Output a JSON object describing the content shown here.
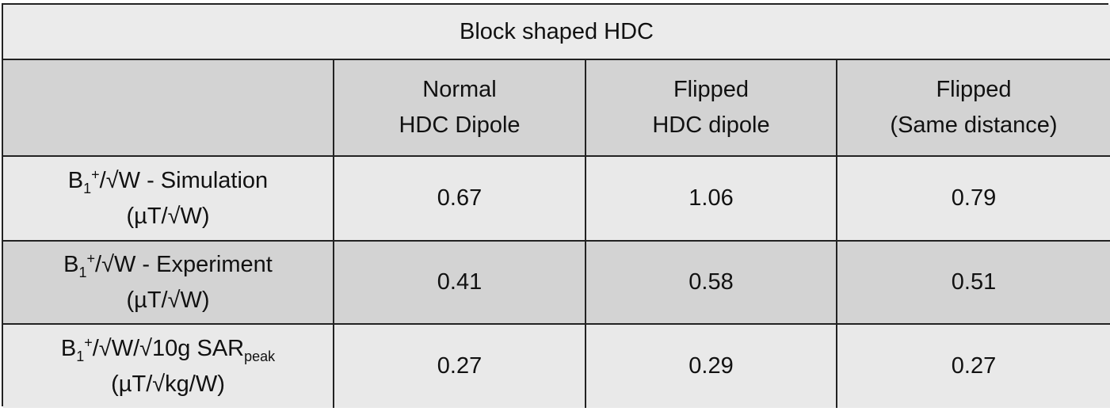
{
  "table": {
    "title": "Block shaped HDC",
    "columns": [
      [
        "Normal",
        "HDC Dipole"
      ],
      [
        "Flipped",
        "HDC dipole"
      ],
      [
        "Flipped",
        "(Same distance)"
      ]
    ],
    "rows": [
      {
        "label": [
          [
            {
              "t": "B"
            },
            {
              "sub": "1"
            },
            {
              "sup": "+"
            },
            {
              "t": "/√W - Simulation"
            }
          ],
          [
            {
              "t": "(µT/√W)"
            }
          ]
        ],
        "values": [
          0.67,
          1.06,
          0.79
        ]
      },
      {
        "label": [
          [
            {
              "t": "B"
            },
            {
              "sub": "1"
            },
            {
              "sup": "+"
            },
            {
              "t": "/√W - Experiment"
            }
          ],
          [
            {
              "t": "(µT/√W)"
            }
          ]
        ],
        "values": [
          0.41,
          0.58,
          0.51
        ]
      },
      {
        "label": [
          [
            {
              "t": "B"
            },
            {
              "sub": "1"
            },
            {
              "sup": "+"
            },
            {
              "t": "/√W/√10g SAR"
            },
            {
              "sub": "peak"
            }
          ],
          [
            {
              "t": "(µT/√kg/W)"
            }
          ]
        ],
        "values": [
          0.27,
          0.29,
          0.27
        ]
      }
    ]
  }
}
